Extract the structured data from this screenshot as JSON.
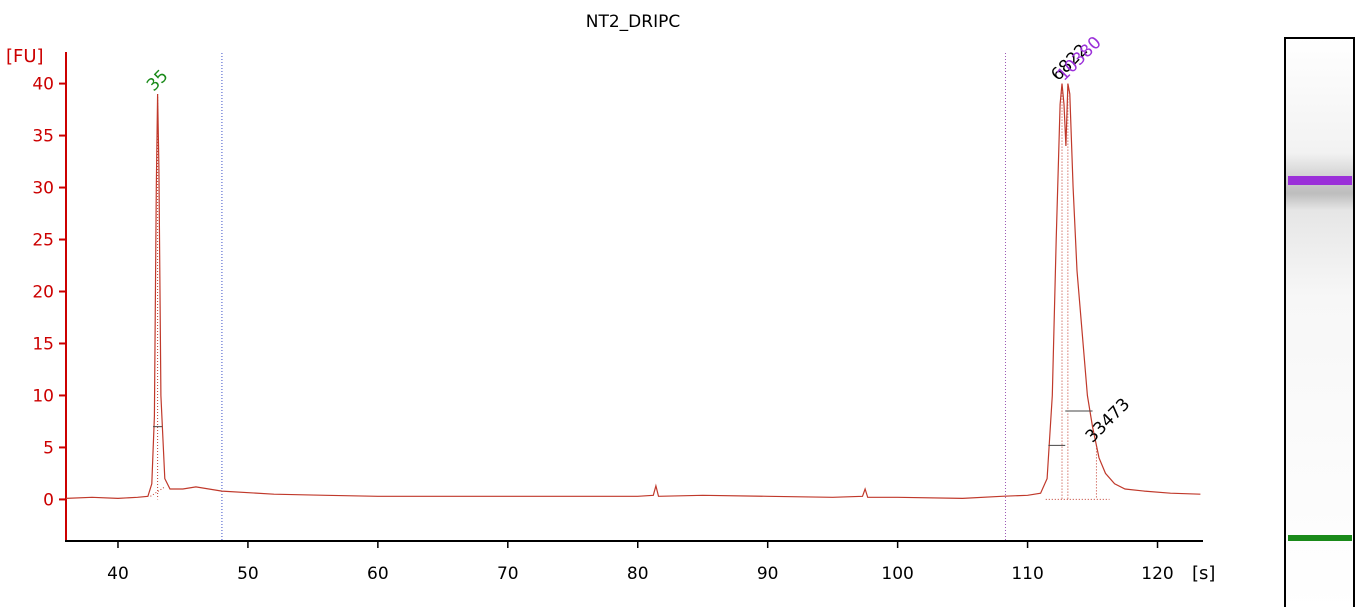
{
  "chart_data": {
    "type": "line",
    "title": "NT2_DRIPC",
    "ylabel": "[FU]",
    "xlabel": "[s]",
    "xlim": [
      36,
      123.5
    ],
    "ylim": [
      -4,
      44
    ],
    "x_ticks": [
      40,
      50,
      60,
      70,
      80,
      90,
      100,
      110,
      120
    ],
    "y_ticks": [
      0,
      5,
      10,
      15,
      20,
      25,
      30,
      35,
      40
    ],
    "grid": false,
    "legend": "none",
    "series": [
      {
        "color": "#c0392b",
        "points": [
          [
            36.0,
            0.1
          ],
          [
            38.0,
            0.2
          ],
          [
            40.0,
            0.1
          ],
          [
            41.5,
            0.2
          ],
          [
            42.3,
            0.3
          ],
          [
            42.6,
            1.5
          ],
          [
            42.8,
            8.0
          ],
          [
            42.95,
            30.0
          ],
          [
            43.05,
            39.0
          ],
          [
            43.15,
            32.0
          ],
          [
            43.3,
            10.0
          ],
          [
            43.6,
            2.0
          ],
          [
            44.0,
            1.0
          ],
          [
            45.0,
            1.0
          ],
          [
            46.0,
            1.2
          ],
          [
            48.0,
            0.8
          ],
          [
            52.0,
            0.5
          ],
          [
            56.0,
            0.4
          ],
          [
            60.0,
            0.3
          ],
          [
            65.0,
            0.3
          ],
          [
            70.0,
            0.3
          ],
          [
            75.0,
            0.3
          ],
          [
            80.0,
            0.3
          ],
          [
            81.2,
            0.4
          ],
          [
            81.4,
            1.3
          ],
          [
            81.6,
            0.3
          ],
          [
            85.0,
            0.4
          ],
          [
            90.0,
            0.3
          ],
          [
            95.0,
            0.2
          ],
          [
            97.3,
            0.3
          ],
          [
            97.5,
            1.0
          ],
          [
            97.7,
            0.2
          ],
          [
            100.0,
            0.2
          ],
          [
            105.0,
            0.1
          ],
          [
            108.0,
            0.3
          ],
          [
            110.0,
            0.4
          ],
          [
            111.0,
            0.6
          ],
          [
            111.5,
            2.0
          ],
          [
            111.9,
            10.0
          ],
          [
            112.2,
            25.0
          ],
          [
            112.5,
            38.0
          ],
          [
            112.65,
            40.0
          ],
          [
            112.8,
            38.0
          ],
          [
            112.95,
            34.0
          ],
          [
            113.1,
            40.0
          ],
          [
            113.25,
            39.0
          ],
          [
            113.5,
            30.0
          ],
          [
            113.8,
            22.0
          ],
          [
            114.2,
            16.0
          ],
          [
            114.6,
            10.0
          ],
          [
            115.0,
            7.0
          ],
          [
            115.5,
            4.0
          ],
          [
            116.0,
            2.5
          ],
          [
            116.7,
            1.5
          ],
          [
            117.5,
            1.0
          ],
          [
            119.0,
            0.8
          ],
          [
            121.0,
            0.6
          ],
          [
            123.3,
            0.5
          ]
        ]
      }
    ],
    "markers": [
      {
        "x": 48.0,
        "color": "#3b4fc8"
      },
      {
        "x": 108.3,
        "color": "#9b59b6"
      }
    ],
    "peaks": [
      {
        "x": 43.05,
        "y": 39.0,
        "label": "35",
        "color": "#1a8a1a"
      },
      {
        "x": 112.65,
        "y": 40.0,
        "label": "6822",
        "color": "#000000"
      },
      {
        "x": 113.1,
        "y": 40.0,
        "label": "10380",
        "color": "#9b30d9"
      },
      {
        "x": 115.3,
        "y": 5.2,
        "label": "33473",
        "color": "#000000"
      }
    ],
    "gel": {
      "bands": [
        {
          "position": "upper",
          "color": "#9b30d9"
        },
        {
          "position": "lower",
          "color": "#1a8a1a"
        }
      ]
    }
  }
}
